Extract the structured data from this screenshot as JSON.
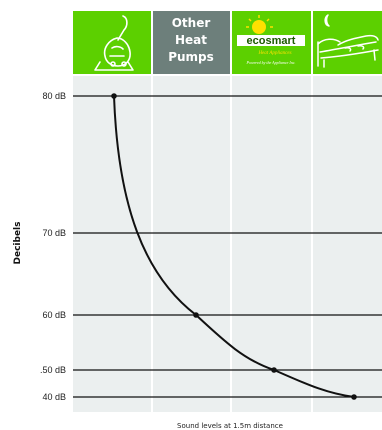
{
  "chart_data": {
    "type": "line",
    "header": {
      "columns": [
        {
          "label_lines": []
        },
        {
          "label_lines": [
            "Other",
            "Heat",
            "Pumps"
          ]
        },
        {
          "label_lines": [],
          "logo_text": "ecosmart",
          "logo_sub1": "Heat Appliances",
          "logo_sub2": "Powered by the Appliance Inc."
        },
        {
          "label_lines": []
        }
      ]
    },
    "ylabel": "Decibels",
    "xlabel": "Sound levels at 1.5m distance",
    "yticks": [
      {
        "label": "80 dB",
        "value": 80
      },
      {
        "label": "70 dB",
        "value": 70
      },
      {
        "label": "60 dB",
        "value": 60
      },
      {
        "label": ".50 dB",
        "value": 50
      },
      {
        "label": "40 dB",
        "value": 40
      }
    ],
    "points": [
      {
        "column": 1,
        "value": 80
      },
      {
        "column": 2,
        "value": 60
      },
      {
        "column": 3,
        "value": 50
      },
      {
        "column": 4,
        "value": 40
      }
    ],
    "colors": {
      "header_green": "#5cd000",
      "header_grey": "#6d7f7b",
      "plot_bg": "#ebefef",
      "column_divider": "#ffffff",
      "line": "#111111"
    }
  }
}
